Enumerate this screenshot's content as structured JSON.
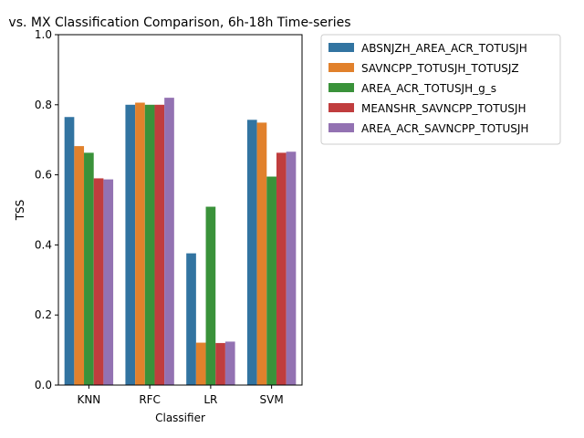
{
  "chart_data": {
    "type": "bar",
    "title": "vs. MX Classification Comparison, 6h-18h Time-series",
    "xlabel": "Classifier",
    "ylabel": "TSS",
    "ylim": [
      0,
      1.0
    ],
    "yticks": [
      "0.0",
      "0.2",
      "0.4",
      "0.6",
      "0.8",
      "1.0"
    ],
    "categories": [
      "KNN",
      "RFC",
      "LR",
      "SVM"
    ],
    "legend_position": "outside-right",
    "grid": false,
    "series": [
      {
        "name": "ABSNJZH_AREA_ACR_TOTUSJH",
        "color": "#3274a1",
        "values": [
          0.765,
          0.8,
          0.376,
          0.757
        ]
      },
      {
        "name": "SAVNCPP_TOTUSJH_TOTUSJZ",
        "color": "#e1812c",
        "values": [
          0.682,
          0.806,
          0.121,
          0.749
        ]
      },
      {
        "name": "AREA_ACR_TOTUSJH_g_s",
        "color": "#3a923a",
        "values": [
          0.663,
          0.8,
          0.509,
          0.595
        ]
      },
      {
        "name": "MEANSHR_SAVNCPP_TOTUSJH",
        "color": "#c03d3e",
        "values": [
          0.59,
          0.8,
          0.12,
          0.663
        ]
      },
      {
        "name": "AREA_ACR_SAVNCPP_TOTUSJH",
        "color": "#9372b2",
        "values": [
          0.587,
          0.82,
          0.124,
          0.666
        ]
      }
    ]
  }
}
